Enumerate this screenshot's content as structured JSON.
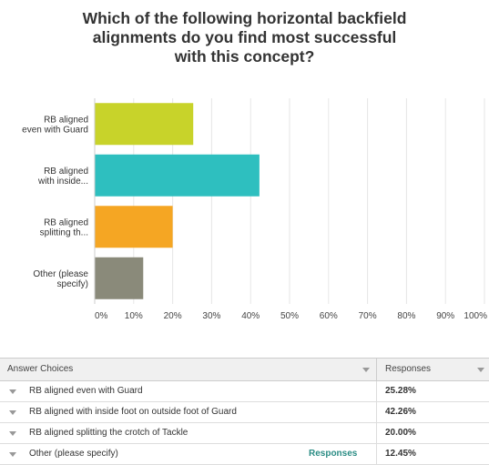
{
  "chart_data": {
    "type": "bar",
    "orientation": "horizontal",
    "title_lines": [
      "Which of the following horizontal backfield",
      "alignments do you find most successful",
      "with this concept?"
    ],
    "categories": [
      [
        "RB aligned",
        "even with Guard"
      ],
      [
        "RB aligned",
        "with inside..."
      ],
      [
        "RB aligned",
        "splitting th..."
      ],
      [
        "Other (please",
        "specify)"
      ]
    ],
    "values": [
      25.28,
      42.26,
      20.0,
      12.45
    ],
    "colors": [
      "#c8d32a",
      "#2ebfbf",
      "#f5a623",
      "#8a8a7a"
    ],
    "xlim": [
      0,
      100
    ],
    "ticks": [
      "0%",
      "10%",
      "20%",
      "30%",
      "40%",
      "50%",
      "60%",
      "70%",
      "80%",
      "90%",
      "100%"
    ],
    "grid": true
  },
  "table": {
    "header_choices": "Answer Choices",
    "header_responses": "Responses",
    "rows": [
      {
        "label": "RB aligned even with Guard",
        "pct": "25.28%"
      },
      {
        "label": "RB aligned with inside foot on outside foot of Guard",
        "pct": "42.26%"
      },
      {
        "label": "RB aligned splitting the crotch of Tackle",
        "pct": "20.00%"
      },
      {
        "label": "Other (please specify)",
        "pct": "12.45%",
        "link": "Responses"
      }
    ]
  }
}
